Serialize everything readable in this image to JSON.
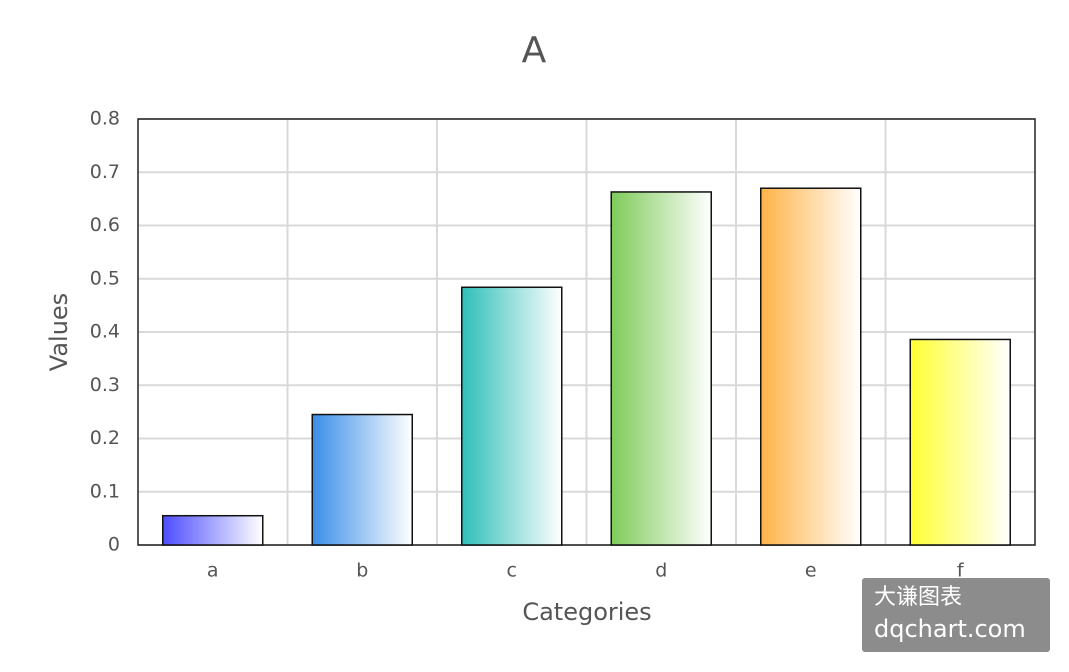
{
  "chart_data": {
    "type": "bar",
    "title": "A",
    "x_label": "Categories",
    "y_label": "Values",
    "categories": [
      "a",
      "b",
      "c",
      "d",
      "e",
      "f"
    ],
    "values": [
      0.055,
      0.245,
      0.484,
      0.663,
      0.67,
      0.386
    ],
    "colors": [
      "#4d4dff",
      "#3a8ee8",
      "#2ebfb8",
      "#7ecb5a",
      "#ffb347",
      "#ffff33"
    ],
    "ylim": [
      0,
      0.8
    ],
    "yticks": [
      0,
      0.1,
      0.2,
      0.3,
      0.4,
      0.5,
      0.6,
      0.7,
      0.8
    ],
    "grid": true
  },
  "watermark": {
    "line1": "大谦图表",
    "line2": "dqchart.com"
  }
}
